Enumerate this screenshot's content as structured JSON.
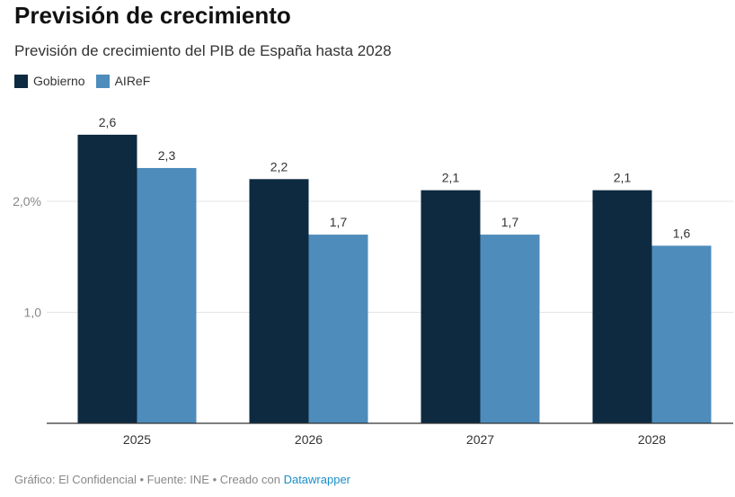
{
  "header": {
    "title": "Previsión de crecimiento",
    "subtitle": "Previsión de crecimiento del PIB de España hasta 2028"
  },
  "legend": [
    {
      "label": "Gobierno",
      "color": "#0d2a40"
    },
    {
      "label": "AIReF",
      "color": "#4e8cbb"
    }
  ],
  "chart_data": {
    "type": "bar",
    "categories": [
      "2025",
      "2026",
      "2027",
      "2028"
    ],
    "series": [
      {
        "name": "Gobierno",
        "values": [
          2.6,
          2.2,
          2.1,
          2.1
        ],
        "labels": [
          "2,6",
          "2,2",
          "2,1",
          "2,1"
        ],
        "color": "#0d2a40"
      },
      {
        "name": "AIReF",
        "values": [
          2.3,
          1.7,
          1.7,
          1.6
        ],
        "labels": [
          "2,3",
          "1,7",
          "1,7",
          "1,6"
        ],
        "color": "#4e8cbb"
      }
    ],
    "yticks": [
      {
        "value": 1.0,
        "label": "1,0"
      },
      {
        "value": 2.0,
        "label": "2,0%"
      }
    ],
    "ylim": [
      0,
      2.75
    ],
    "grid": true
  },
  "footer": {
    "source_text": "Gráfico: El Confidencial • Fuente: INE • Creado con ",
    "tool_link": "Datawrapper"
  }
}
